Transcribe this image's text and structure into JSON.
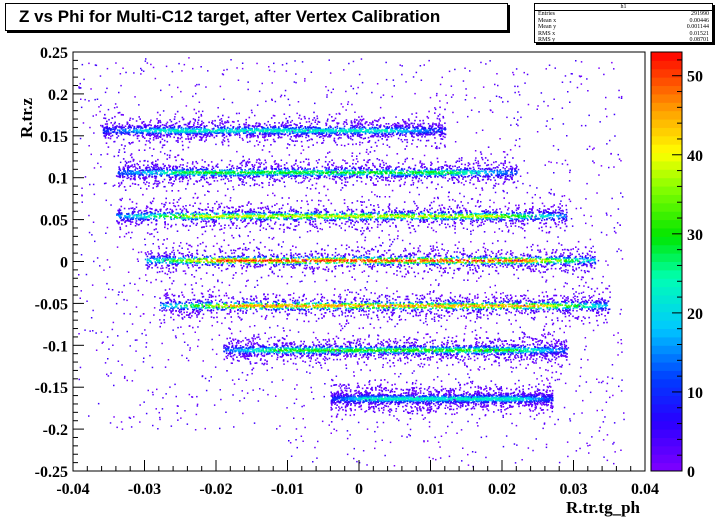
{
  "title": "Z vs Phi for Multi-C12 target, after Vertex Calibration",
  "stats": {
    "name": "h1",
    "rows": [
      {
        "label": "Entries",
        "value": "291990"
      },
      {
        "label": "Mean x",
        "value": "0.00446"
      },
      {
        "label": "Mean y",
        "value": "0.001144"
      },
      {
        "label": "RMS x",
        "value": "0.01521"
      },
      {
        "label": "RMS y",
        "value": "0.08701"
      }
    ]
  },
  "chart_data": {
    "type": "heatmap",
    "xlabel": "R.tr.tg_ph",
    "ylabel": "R.tr.z",
    "xlim": [
      -0.04,
      0.04
    ],
    "ylim": [
      -0.25,
      0.25
    ],
    "x_ticks": [
      "-0.04",
      "-0.03",
      "-0.02",
      "-0.01",
      "0",
      "0.01",
      "0.02",
      "0.03",
      "0.04"
    ],
    "y_ticks": [
      "-0.25",
      "-0.2",
      "-0.15",
      "-0.1",
      "-0.05",
      "0",
      "0.05",
      "0.1",
      "0.15",
      "0.2",
      "0.25"
    ],
    "colorbar": {
      "min": 0,
      "max": 53,
      "ticks": [
        "0",
        "10",
        "20",
        "30",
        "40",
        "50"
      ]
    },
    "bands": [
      {
        "z": 0.157,
        "x_min": -0.036,
        "x_max": 0.012,
        "peak": 22
      },
      {
        "z": 0.107,
        "x_min": -0.034,
        "x_max": 0.022,
        "peak": 28
      },
      {
        "z": 0.055,
        "x_min": -0.034,
        "x_max": 0.029,
        "peak": 38
      },
      {
        "z": 0.002,
        "x_min": -0.03,
        "x_max": 0.033,
        "peak": 50
      },
      {
        "z": -0.052,
        "x_min": -0.028,
        "x_max": 0.035,
        "peak": 45
      },
      {
        "z": -0.105,
        "x_min": -0.019,
        "x_max": 0.029,
        "peak": 30
      },
      {
        "z": -0.163,
        "x_min": -0.004,
        "x_max": 0.027,
        "peak": 22
      }
    ]
  }
}
